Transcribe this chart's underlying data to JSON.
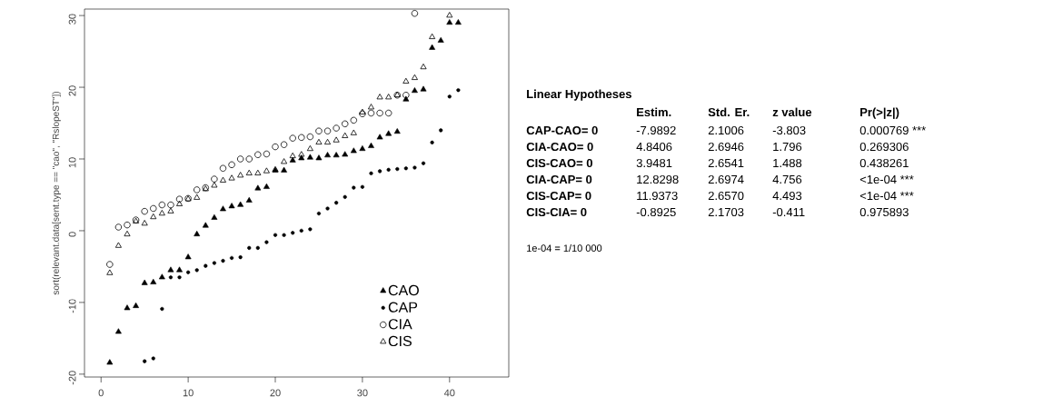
{
  "chart_data": [
    {
      "type": "scatter",
      "ylabel": "sort(relevant.data[sent.type == \"cao\", \"RslopeST\"])",
      "xlim": [
        -1.9,
        46.8
      ],
      "ylim": [
        -20.4,
        30.9
      ],
      "xticks": [
        0,
        10,
        20,
        30,
        40
      ],
      "yticks": [
        -20,
        -10,
        0,
        10,
        20,
        30
      ],
      "legend": "bottom right",
      "series": [
        {
          "name": "CAO",
          "color": "#000000",
          "marker": "triangle",
          "x": [
            1,
            2,
            3,
            4,
            5,
            6,
            7,
            8,
            9,
            10,
            11,
            12,
            13,
            14,
            15,
            16,
            17,
            18,
            19,
            20,
            21,
            22,
            23,
            24,
            25,
            26,
            27,
            28,
            29,
            30,
            31,
            32,
            33,
            34,
            35,
            36,
            37,
            38,
            39,
            40,
            41
          ],
          "values": [
            -18.4,
            -14.1,
            -10.8,
            -10.5,
            -7.3,
            -7.2,
            -6.5,
            -5.5,
            -5.5,
            -3.7,
            -0.5,
            0.7,
            1.8,
            3.0,
            3.4,
            3.6,
            4.2,
            5.9,
            6.1,
            8.4,
            8.4,
            9.8,
            10.1,
            10.2,
            10.1,
            10.5,
            10.5,
            10.6,
            11.1,
            11.4,
            11.8,
            13.0,
            13.5,
            13.8,
            18.3,
            19.5,
            19.7,
            25.5,
            26.5,
            29.0,
            29.0
          ]
        },
        {
          "name": "CAP",
          "color": "#000000",
          "marker": "circle",
          "x": [
            5,
            6,
            7,
            8,
            9,
            10,
            11,
            12,
            13,
            14,
            15,
            16,
            17,
            18,
            19,
            20,
            21,
            22,
            23,
            24,
            25,
            26,
            27,
            28,
            29,
            30,
            31,
            32,
            33,
            34,
            35,
            36,
            37,
            38,
            39,
            40,
            41
          ],
          "values": [
            -18.2,
            -17.8,
            -10.9,
            -6.5,
            -6.5,
            -5.8,
            -5.5,
            -4.9,
            -4.5,
            -4.2,
            -3.8,
            -3.7,
            -2.4,
            -2.4,
            -1.6,
            -0.6,
            -0.6,
            -0.3,
            0.0,
            0.2,
            2.4,
            3.1,
            3.9,
            4.7,
            6.0,
            6.1,
            8.0,
            8.3,
            8.5,
            8.6,
            8.7,
            8.8,
            9.4,
            12.3,
            14.0,
            18.7,
            19.6
          ]
        },
        {
          "name": "CIA",
          "color": "#000000",
          "marker": "circle-open",
          "x": [
            1,
            2,
            3,
            4,
            5,
            6,
            7,
            8,
            9,
            10,
            11,
            12,
            13,
            14,
            15,
            16,
            17,
            18,
            19,
            20,
            21,
            22,
            23,
            24,
            25,
            26,
            27,
            28,
            29,
            30,
            31,
            32,
            33,
            34,
            35,
            36
          ],
          "values": [
            -4.7,
            0.5,
            0.8,
            1.5,
            2.7,
            3.1,
            3.6,
            3.6,
            4.4,
            4.5,
            5.7,
            6.0,
            7.2,
            8.7,
            9.2,
            10.0,
            10.0,
            10.6,
            10.7,
            11.7,
            12.0,
            12.9,
            13.0,
            13.1,
            13.9,
            13.9,
            14.3,
            14.9,
            15.4,
            16.3,
            16.4,
            16.4,
            16.4,
            18.9,
            18.9,
            30.3
          ]
        },
        {
          "name": "CIS",
          "color": "#000000",
          "marker": "triangle-open",
          "x": [
            1,
            2,
            3,
            4,
            5,
            6,
            7,
            8,
            9,
            10,
            11,
            12,
            13,
            14,
            15,
            16,
            17,
            18,
            19,
            20,
            21,
            22,
            23,
            24,
            25,
            26,
            27,
            28,
            29,
            30,
            31,
            32,
            33,
            34,
            35,
            36,
            37,
            38,
            40
          ],
          "values": [
            -5.9,
            -2.1,
            -0.5,
            1.3,
            1.0,
            1.9,
            2.4,
            2.7,
            3.7,
            4.4,
            4.6,
            5.8,
            6.3,
            7.0,
            7.3,
            7.7,
            8.0,
            8.0,
            8.3,
            8.5,
            9.6,
            10.4,
            10.6,
            11.4,
            12.3,
            12.3,
            12.6,
            13.2,
            13.6,
            16.5,
            17.2,
            18.6,
            18.6,
            18.9,
            20.8,
            21.3,
            22.8,
            27.0,
            30.0
          ]
        }
      ]
    },
    {
      "type": "other",
      "title": "Linear Hypotheses",
      "annotations": [
        "Estim.",
        "Std. Er.",
        "z value",
        "Pr(>|z|)",
        "CAP-CAO= 0",
        "-7.9892",
        "2.1006",
        "-3.803",
        "0.000769 ***",
        "CIA-CAO= 0",
        "4.8406",
        "2.6946",
        "1.796",
        "0.269306",
        "CIS-CAO= 0",
        "3.9481",
        "2.6541",
        "1.488",
        "0.438261",
        "CIA-CAP= 0",
        "12.8298",
        "2.6974",
        "4.756",
        "<1e-04 ***",
        "CIS-CAP= 0",
        "11.9373",
        "2.6570",
        "4.493",
        "<1e-04 ***",
        "CIS-CIA= 0",
        "-0.8925",
        "2.1703",
        "-0.411",
        "0.975893",
        "1e-04 = 1/10 000"
      ]
    }
  ]
}
